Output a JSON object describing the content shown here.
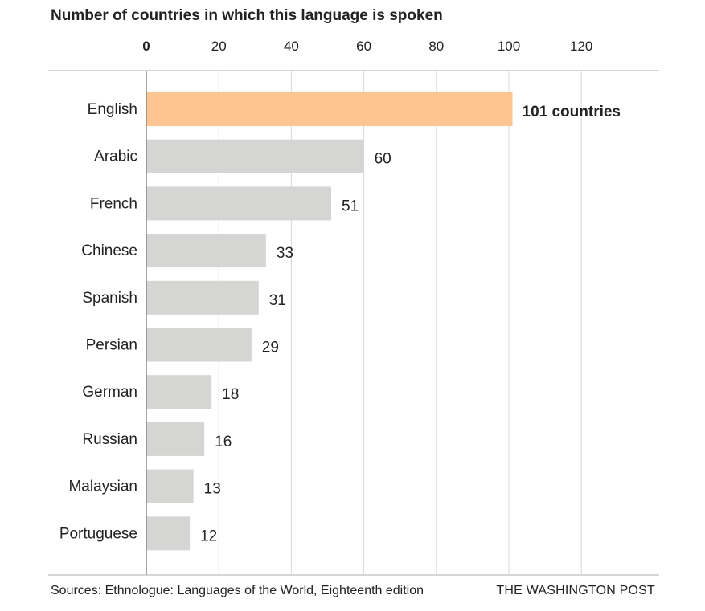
{
  "chart_data": {
    "type": "bar",
    "orientation": "horizontal",
    "title": "Number of countries in which this language is spoken",
    "categories": [
      "English",
      "Arabic",
      "French",
      "Chinese",
      "Spanish",
      "Persian",
      "German",
      "Russian",
      "Malaysian",
      "Portuguese"
    ],
    "values": [
      101,
      60,
      51,
      33,
      31,
      29,
      18,
      16,
      13,
      12
    ],
    "value_labels": [
      "101 countries",
      "60",
      "51",
      "33",
      "31",
      "29",
      "18",
      "16",
      "13",
      "12"
    ],
    "highlight_index": 0,
    "xticks": [
      0,
      20,
      40,
      60,
      80,
      100,
      120
    ],
    "xlim": [
      0,
      140
    ],
    "xlabel": "",
    "ylabel": "",
    "grid": true,
    "colors": {
      "highlight": "#fcc591",
      "bar": "#d5d5d3",
      "grid": "#d9d9d9",
      "axis": "#888888",
      "text": "#222222"
    }
  },
  "footer": {
    "source": "Sources: Ethnologue: Languages of the World, Eighteenth edition",
    "brand": "THE WASHINGTON POST"
  }
}
